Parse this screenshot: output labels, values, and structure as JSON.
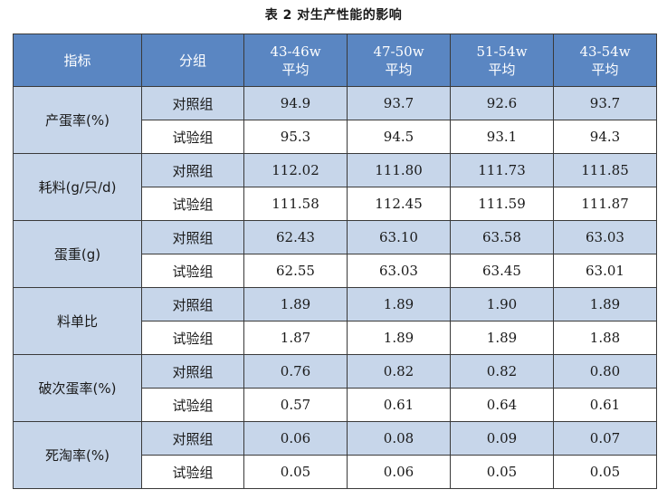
{
  "caption": "表 2  对生产性能的影响",
  "header": {
    "metric": "指标",
    "group": "分组",
    "periods": [
      {
        "range": "43-46w",
        "sub": "平均"
      },
      {
        "range": "47-50w",
        "sub": "平均"
      },
      {
        "range": "51-54w",
        "sub": "平均"
      },
      {
        "range": "43-54w",
        "sub": "平均"
      }
    ]
  },
  "metrics": [
    {
      "name": "产蛋率(%)",
      "rows": [
        {
          "group": "对照组",
          "values": [
            "94.9",
            "93.7",
            "92.6",
            "93.7"
          ]
        },
        {
          "group": "试验组",
          "values": [
            "95.3",
            "94.5",
            "93.1",
            "94.3"
          ]
        }
      ]
    },
    {
      "name": "耗料(g/只/d)",
      "rows": [
        {
          "group": "对照组",
          "values": [
            "112.02",
            "111.80",
            "111.73",
            "111.85"
          ]
        },
        {
          "group": "试验组",
          "values": [
            "111.58",
            "112.45",
            "111.59",
            "111.87"
          ]
        }
      ]
    },
    {
      "name": "蛋重(g)",
      "rows": [
        {
          "group": "对照组",
          "values": [
            "62.43",
            "63.10",
            "63.58",
            "63.03"
          ]
        },
        {
          "group": "试验组",
          "values": [
            "62.55",
            "63.03",
            "63.45",
            "63.01"
          ]
        }
      ]
    },
    {
      "name": "料单比",
      "rows": [
        {
          "group": "对照组",
          "values": [
            "1.89",
            "1.89",
            "1.90",
            "1.89"
          ]
        },
        {
          "group": "试验组",
          "values": [
            "1.87",
            "1.89",
            "1.89",
            "1.88"
          ]
        }
      ]
    },
    {
      "name": "破次蛋率(%)",
      "rows": [
        {
          "group": "对照组",
          "values": [
            "0.76",
            "0.82",
            "0.82",
            "0.80"
          ]
        },
        {
          "group": "试验组",
          "values": [
            "0.57",
            "0.61",
            "0.64",
            "0.61"
          ]
        }
      ]
    },
    {
      "name": "死淘率(%)",
      "rows": [
        {
          "group": "对照组",
          "values": [
            "0.06",
            "0.08",
            "0.09",
            "0.07"
          ]
        },
        {
          "group": "试验组",
          "values": [
            "0.05",
            "0.06",
            "0.05",
            "0.05"
          ]
        }
      ]
    }
  ]
}
